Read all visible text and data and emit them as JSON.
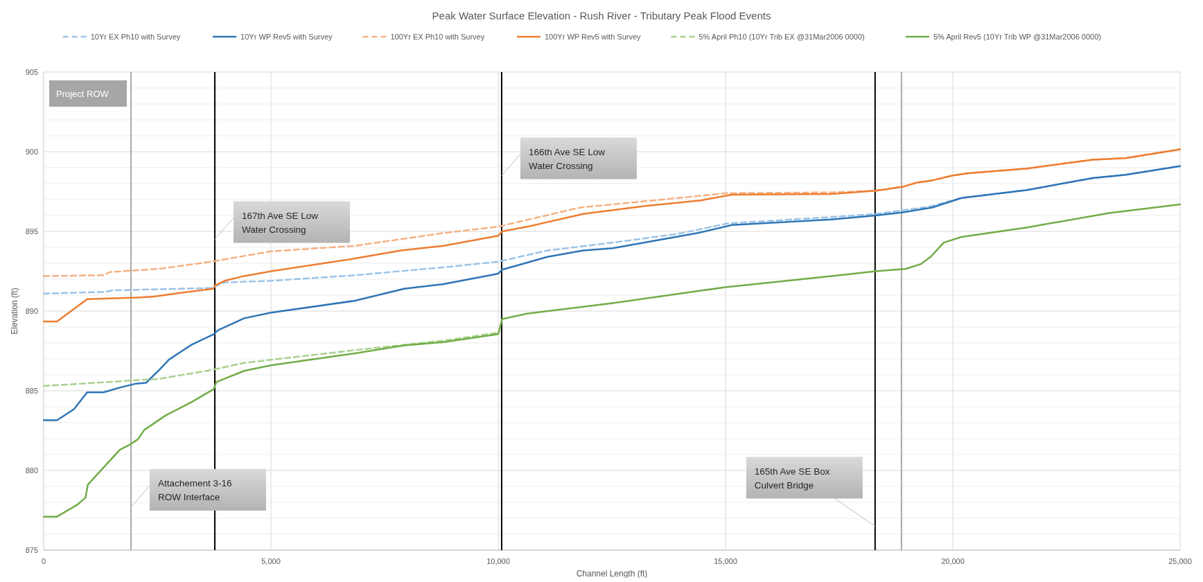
{
  "chart_data": {
    "type": "line",
    "title": "Peak Water Surface Elevation - Rush River - Tributary Peak Flood Events",
    "xlabel": "Channel Length (ft)",
    "ylabel": "Elevation (ft)",
    "xlim": [
      0,
      25000
    ],
    "ylim": [
      875,
      905
    ],
    "xticks": [
      0,
      {
        "value": 5000,
        "label": "5,000"
      },
      {
        "value": 10000,
        "label": "10,000"
      },
      {
        "value": 15000,
        "label": "15,000"
      },
      {
        "value": 20000,
        "label": "20,000"
      },
      {
        "value": 25000,
        "label": "25,000"
      }
    ],
    "yticks": [
      875,
      {
        "value": 876,
        "label": null
      },
      {
        "value": 877,
        "label": null
      },
      {
        "value": 878,
        "label": null
      },
      {
        "value": 879,
        "label": null
      },
      880,
      {
        "value": 881,
        "label": null
      },
      {
        "value": 882,
        "label": null
      },
      {
        "value": 883,
        "label": null
      },
      {
        "value": 884,
        "label": null
      },
      885,
      {
        "value": 886,
        "label": null
      },
      {
        "value": 887,
        "label": null
      },
      {
        "value": 888,
        "label": null
      },
      {
        "value": 889,
        "label": null
      },
      890,
      {
        "value": 891,
        "label": null
      },
      {
        "value": 892,
        "label": null
      },
      {
        "value": 893,
        "label": null
      },
      {
        "value": 894,
        "label": null
      },
      895,
      {
        "value": 896,
        "label": null
      },
      {
        "value": 897,
        "label": null
      },
      {
        "value": 898,
        "label": null
      },
      {
        "value": 899,
        "label": null
      },
      900,
      {
        "value": 901,
        "label": null
      },
      {
        "value": 902,
        "label": null
      },
      {
        "value": 903,
        "label": null
      },
      {
        "value": 904,
        "label": null
      },
      905
    ],
    "grid": true,
    "legend": "top",
    "series": [
      {
        "name": "10Yr EX Ph10 with Survey",
        "color": "#9dc3e6",
        "line_style": "dashed",
        "x": [
          0,
          1317,
          1530,
          3690,
          3980,
          5000,
          6850,
          8800,
          10000,
          11080,
          12520,
          13960,
          15040,
          17330,
          18300,
          19474,
          20190,
          21635,
          23076,
          23800,
          25000
        ],
        "values": [
          891.1,
          891.2,
          891.3,
          891.45,
          891.8,
          891.9,
          892.25,
          892.75,
          893.1,
          893.8,
          894.3,
          894.85,
          895.5,
          895.9,
          896.1,
          896.55,
          897.1,
          897.6,
          898.35,
          898.55,
          899.1
        ]
      },
      {
        "name": "10Yr WP Rev5 with Survey",
        "color": "#2e75b6",
        "line_style": "solid",
        "x": [
          0,
          295,
          669,
          957,
          1317,
          1676,
          2036,
          2252,
          2540,
          2755,
          3259,
          3741,
          3835,
          4410,
          5000,
          6850,
          7930,
          8800,
          10000,
          10085,
          11080,
          11870,
          12520,
          14390,
          15140,
          17330,
          18300,
          18900,
          19546,
          20190,
          21635,
          23076,
          23800,
          25000
        ],
        "values": [
          883.15,
          883.15,
          883.85,
          884.9,
          884.9,
          885.2,
          885.45,
          885.5,
          886.3,
          886.95,
          887.9,
          888.55,
          888.8,
          889.55,
          889.9,
          890.65,
          891.4,
          891.7,
          892.35,
          892.6,
          893.4,
          893.8,
          893.95,
          894.9,
          895.4,
          895.75,
          896.0,
          896.2,
          896.5,
          897.1,
          897.6,
          898.35,
          898.55,
          899.1
        ]
      },
      {
        "name": "100Yr EX Ph10 with Survey",
        "color": "#f4b183",
        "line_style": "dashed",
        "x": [
          0,
          1317,
          1460,
          2540,
          3690,
          5000,
          6850,
          8800,
          10000,
          11800,
          13240,
          15040,
          17330,
          18300,
          18900,
          19186,
          19546,
          19980,
          20340,
          21635,
          23076,
          23800,
          25000
        ],
        "values": [
          892.2,
          892.25,
          892.45,
          892.65,
          893.1,
          893.75,
          894.1,
          894.9,
          895.3,
          896.5,
          896.9,
          897.4,
          897.45,
          897.55,
          897.8,
          898.05,
          898.2,
          898.5,
          898.65,
          898.95,
          899.5,
          899.6,
          900.15
        ]
      },
      {
        "name": "100Yr WP Rev5 with Survey",
        "color": "#ed7d31",
        "line_style": "solid",
        "x": [
          0,
          295,
          957,
          2036,
          2400,
          2900,
          3730,
          3765,
          3980,
          4410,
          5000,
          6850,
          7860,
          8800,
          10000,
          10085,
          10650,
          11870,
          13240,
          14460,
          15140,
          17330,
          18300,
          18900,
          19186,
          19546,
          19980,
          20340,
          21635,
          23076,
          23800,
          25000
        ],
        "values": [
          889.35,
          889.35,
          890.75,
          890.85,
          890.9,
          891.1,
          891.4,
          891.6,
          891.9,
          892.2,
          892.5,
          893.3,
          893.8,
          894.1,
          894.73,
          895.0,
          895.3,
          896.1,
          896.6,
          896.95,
          897.3,
          897.35,
          897.55,
          897.8,
          898.05,
          898.2,
          898.5,
          898.65,
          898.95,
          899.5,
          899.6,
          900.15
        ]
      },
      {
        "name": "5% April Ph10 (10Yr Trib EX @31Mar2006 0000)",
        "color": "#a9d18e",
        "line_style": "dashed",
        "x": [
          0,
          2540,
          3690,
          4410,
          6850,
          8800,
          10000
        ],
        "values": [
          885.3,
          885.75,
          886.3,
          886.75,
          887.55,
          888.15,
          888.65
        ]
      },
      {
        "name": "5% April Rev5 (10Yr Trib WP @31Mar2006 0000)",
        "color": "#70ad47",
        "line_style": "solid",
        "x": [
          0,
          295,
          741,
          921,
          971,
          1676,
          1914,
          2072,
          2216,
          2683,
          3259,
          3741,
          3799,
          4410,
          5000,
          6850,
          7930,
          8800,
          10000,
          10085,
          10650,
          12520,
          15000,
          17330,
          18300,
          18970,
          19294,
          19510,
          19800,
          20190,
          21635,
          23436,
          25000
        ],
        "values": [
          877.1,
          877.1,
          877.85,
          878.3,
          879.1,
          881.3,
          881.65,
          881.95,
          882.55,
          883.45,
          884.3,
          885.1,
          885.55,
          886.25,
          886.6,
          887.35,
          887.85,
          888.05,
          888.55,
          889.5,
          889.85,
          890.5,
          891.5,
          892.2,
          892.5,
          892.65,
          892.95,
          893.4,
          894.3,
          894.65,
          895.25,
          896.15,
          896.7
        ]
      }
    ],
    "ref_lines": [
      {
        "axis": "x",
        "value": 1920,
        "color": "#a6a6a6"
      },
      {
        "axis": "x",
        "value": 3765,
        "color": "#000000"
      },
      {
        "axis": "x",
        "value": 10075,
        "color": "#000000"
      },
      {
        "axis": "x",
        "value": 18290,
        "color": "#000000"
      },
      {
        "axis": "x",
        "value": 18870,
        "color": "#a6a6a6"
      }
    ],
    "annotations": [
      "Project ROW",
      {
        "text": "167th Ave SE Low Water Crossing",
        "x": 3765,
        "y": 894.5
      },
      {
        "text": "166th Ave SE Low Water Crossing",
        "x": 10075,
        "y": 898.5
      },
      {
        "text": "Attachement 3-16 ROW Interface",
        "x": 1920,
        "y": 877.7
      },
      {
        "text": "165th Ave SE Box Culvert Bridge",
        "x": 18290,
        "y": 876.5
      }
    ]
  }
}
